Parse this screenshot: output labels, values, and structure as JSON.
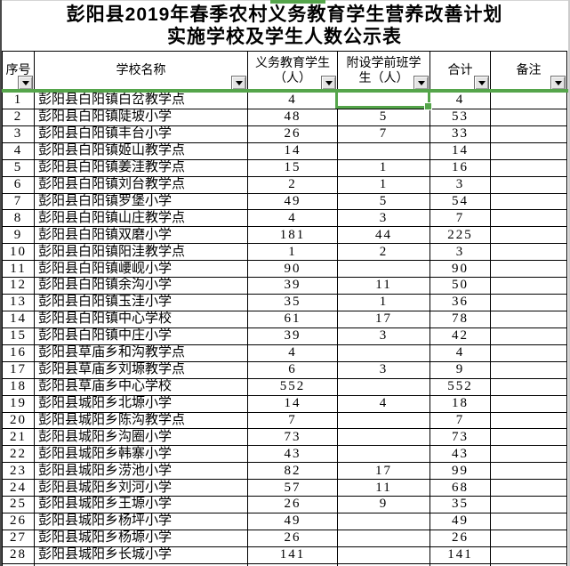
{
  "title": {
    "line1": "彭阳县2019年春季农村义务教育学生营养改善计划",
    "line2": "实施学校及学生人数公示表"
  },
  "table": {
    "columns": [
      {
        "label": "序号",
        "lines": [
          "序号"
        ]
      },
      {
        "label": "学校名称",
        "lines": [
          "学校名称"
        ]
      },
      {
        "label": "义务教育学生（人）",
        "lines": [
          "义务教育学生",
          "（人）"
        ]
      },
      {
        "label": "附设学前班学生（人）",
        "lines": [
          "附设学前班学",
          "生（人）"
        ]
      },
      {
        "label": "合计",
        "lines": [
          "合计"
        ]
      },
      {
        "label": "备注",
        "lines": [
          "备注"
        ]
      }
    ],
    "rows": [
      {
        "no": "1",
        "school": "彭阳县白阳镇白岔教学点",
        "compulsory": "4",
        "preschool": "",
        "total": "4",
        "remark": ""
      },
      {
        "no": "2",
        "school": "彭阳县白阳镇陡坡小学",
        "compulsory": "48",
        "preschool": "5",
        "total": "53",
        "remark": ""
      },
      {
        "no": "3",
        "school": "彭阳县白阳镇丰台小学",
        "compulsory": "26",
        "preschool": "7",
        "total": "33",
        "remark": ""
      },
      {
        "no": "4",
        "school": "彭阳县白阳镇姬山教学点",
        "compulsory": "14",
        "preschool": "",
        "total": "14",
        "remark": ""
      },
      {
        "no": "5",
        "school": "彭阳县白阳镇姜洼教学点",
        "compulsory": "15",
        "preschool": "1",
        "total": "16",
        "remark": ""
      },
      {
        "no": "6",
        "school": "彭阳县白阳镇刘台教学点",
        "compulsory": "2",
        "preschool": "1",
        "total": "3",
        "remark": ""
      },
      {
        "no": "7",
        "school": "彭阳县白阳镇罗堡小学",
        "compulsory": "49",
        "preschool": "5",
        "total": "54",
        "remark": ""
      },
      {
        "no": "8",
        "school": "彭阳县白阳镇山庄教学点",
        "compulsory": "4",
        "preschool": "3",
        "total": "7",
        "remark": ""
      },
      {
        "no": "9",
        "school": "彭阳县白阳镇双磨小学",
        "compulsory": "181",
        "preschool": "44",
        "total": "225",
        "remark": ""
      },
      {
        "no": "10",
        "school": "彭阳县白阳镇阳洼教学点",
        "compulsory": "1",
        "preschool": "2",
        "total": "3",
        "remark": ""
      },
      {
        "no": "11",
        "school": "彭阳县白阳镇崾岘小学",
        "compulsory": "90",
        "preschool": "",
        "total": "90",
        "remark": ""
      },
      {
        "no": "12",
        "school": "彭阳县白阳镇余沟小学",
        "compulsory": "39",
        "preschool": "11",
        "total": "50",
        "remark": ""
      },
      {
        "no": "13",
        "school": "彭阳县白阳镇玉洼小学",
        "compulsory": "35",
        "preschool": "1",
        "total": "36",
        "remark": ""
      },
      {
        "no": "14",
        "school": "彭阳县白阳镇中心学校",
        "compulsory": "61",
        "preschool": "17",
        "total": "78",
        "remark": ""
      },
      {
        "no": "15",
        "school": "彭阳县白阳镇中庄小学",
        "compulsory": "39",
        "preschool": "3",
        "total": "42",
        "remark": ""
      },
      {
        "no": "16",
        "school": "彭阳县草庙乡和沟教学点",
        "compulsory": "4",
        "preschool": "",
        "total": "4",
        "remark": ""
      },
      {
        "no": "17",
        "school": "彭阳县草庙乡刘塬教学点",
        "compulsory": "6",
        "preschool": "3",
        "total": "9",
        "remark": ""
      },
      {
        "no": "18",
        "school": "彭阳县草庙乡中心学校",
        "compulsory": "552",
        "preschool": "",
        "total": "552",
        "remark": ""
      },
      {
        "no": "19",
        "school": "彭阳县城阳乡北塬小学",
        "compulsory": "14",
        "preschool": "4",
        "total": "18",
        "remark": ""
      },
      {
        "no": "20",
        "school": "彭阳县城阳乡陈沟教学点",
        "compulsory": "7",
        "preschool": "",
        "total": "7",
        "remark": ""
      },
      {
        "no": "21",
        "school": "彭阳县城阳乡沟圈小学",
        "compulsory": "73",
        "preschool": "",
        "total": "73",
        "remark": ""
      },
      {
        "no": "22",
        "school": "彭阳县城阳乡韩寨小学",
        "compulsory": "43",
        "preschool": "",
        "total": "43",
        "remark": ""
      },
      {
        "no": "23",
        "school": "彭阳县城阳乡涝池小学",
        "compulsory": "82",
        "preschool": "17",
        "total": "99",
        "remark": ""
      },
      {
        "no": "24",
        "school": "彭阳县城阳乡刘河小学",
        "compulsory": "57",
        "preschool": "11",
        "total": "68",
        "remark": ""
      },
      {
        "no": "25",
        "school": "彭阳县城阳乡王塬小学",
        "compulsory": "26",
        "preschool": "9",
        "total": "35",
        "remark": ""
      },
      {
        "no": "26",
        "school": "彭阳县城阳乡杨坪小学",
        "compulsory": "49",
        "preschool": "",
        "total": "49",
        "remark": ""
      },
      {
        "no": "27",
        "school": "彭阳县城阳乡杨塬小学",
        "compulsory": "26",
        "preschool": "",
        "total": "26",
        "remark": ""
      },
      {
        "no": "28",
        "school": "彭阳县城阳乡长城小学",
        "compulsory": "141",
        "preschool": "",
        "total": "141",
        "remark": ""
      }
    ]
  },
  "selection": {
    "active_row_no": "1",
    "active_column_label": "附设学前班学生（人）",
    "active_column_key": "preschool",
    "active_cell_value": ""
  },
  "icons": {
    "filter_dropdown": "▼"
  },
  "colors": {
    "selection_green": "#55A54B",
    "grid_border": "#000000",
    "filter_button_bg": "#E4E4E4"
  }
}
